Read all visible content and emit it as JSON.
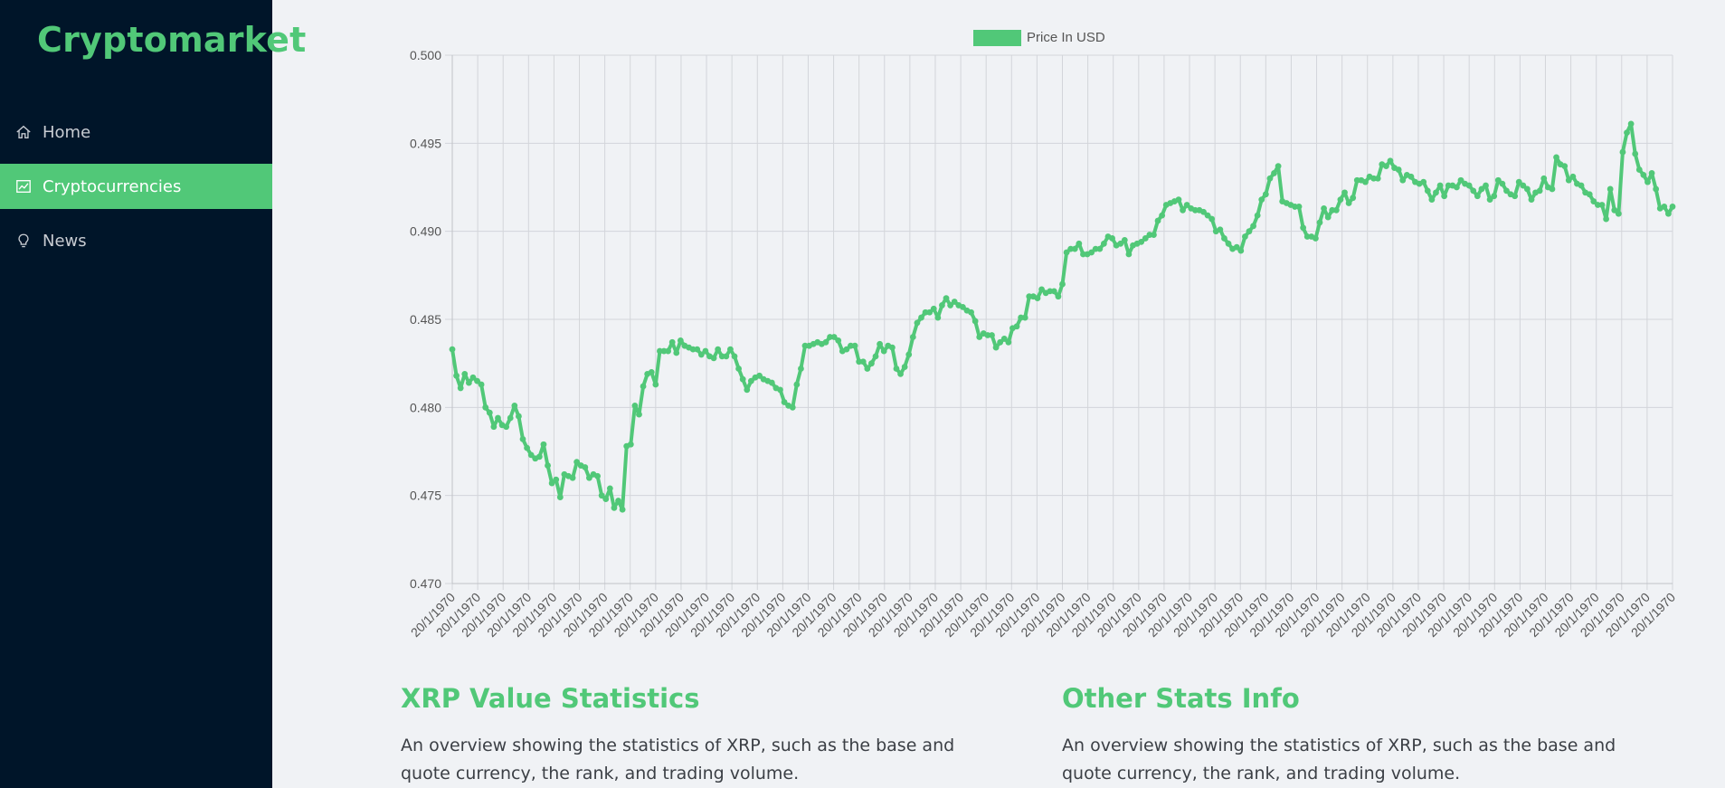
{
  "app": {
    "brand": "Cryptomarket"
  },
  "sidebar": {
    "items": [
      {
        "label": "Home",
        "icon": "home-icon",
        "active": false
      },
      {
        "label": "Cryptocurrencies",
        "icon": "line-chart-icon",
        "active": true
      },
      {
        "label": "News",
        "icon": "bulb-icon",
        "active": false
      }
    ]
  },
  "colors": {
    "sidebar": "#001529",
    "accent": "#51c878",
    "background": "#f0f2f5"
  },
  "chart_data": {
    "type": "line",
    "legend": "Price In USD",
    "legend_position": "top-center",
    "ylim": [
      0.47,
      0.5
    ],
    "yticks": [
      "0.470",
      "0.475",
      "0.480",
      "0.485",
      "0.490",
      "0.495",
      "0.500"
    ],
    "x_tick_label": "20/1/1970",
    "x_tick_count": 49,
    "grid": true,
    "values": [
      0.4833,
      0.4818,
      0.4811,
      0.4819,
      0.4814,
      0.4817,
      0.4815,
      0.4813,
      0.48,
      0.4797,
      0.4789,
      0.4794,
      0.479,
      0.4789,
      0.4794,
      0.4801,
      0.4795,
      0.4782,
      0.4777,
      0.4773,
      0.4771,
      0.4772,
      0.4779,
      0.4767,
      0.4757,
      0.4759,
      0.4749,
      0.4762,
      0.4761,
      0.476,
      0.4769,
      0.4767,
      0.4766,
      0.476,
      0.4762,
      0.4761,
      0.475,
      0.4748,
      0.4754,
      0.4743,
      0.4747,
      0.4742,
      0.4778,
      0.4779,
      0.4801,
      0.4796,
      0.4812,
      0.4819,
      0.482,
      0.4813,
      0.4832,
      0.4832,
      0.4832,
      0.4837,
      0.4831,
      0.4838,
      0.4835,
      0.4834,
      0.4833,
      0.4833,
      0.483,
      0.4832,
      0.4829,
      0.4828,
      0.4833,
      0.4829,
      0.4829,
      0.4833,
      0.4829,
      0.4822,
      0.4816,
      0.481,
      0.4815,
      0.4817,
      0.4818,
      0.4816,
      0.4815,
      0.4814,
      0.4811,
      0.481,
      0.4803,
      0.4801,
      0.48,
      0.4813,
      0.4822,
      0.4835,
      0.4835,
      0.4836,
      0.4837,
      0.4836,
      0.4837,
      0.484,
      0.484,
      0.4838,
      0.4832,
      0.4833,
      0.4835,
      0.4835,
      0.4826,
      0.4826,
      0.4822,
      0.4825,
      0.4829,
      0.4836,
      0.4832,
      0.4835,
      0.4834,
      0.4822,
      0.4819,
      0.4823,
      0.483,
      0.484,
      0.4848,
      0.4851,
      0.4854,
      0.4854,
      0.4856,
      0.4851,
      0.4858,
      0.4862,
      0.4858,
      0.486,
      0.4858,
      0.4857,
      0.4855,
      0.4854,
      0.4849,
      0.484,
      0.4842,
      0.4841,
      0.4841,
      0.4834,
      0.4837,
      0.4839,
      0.4837,
      0.4845,
      0.4846,
      0.4851,
      0.4851,
      0.4863,
      0.4863,
      0.4862,
      0.4867,
      0.4865,
      0.4866,
      0.4866,
      0.4863,
      0.487,
      0.4888,
      0.489,
      0.489,
      0.4893,
      0.4887,
      0.4887,
      0.4888,
      0.489,
      0.489,
      0.4893,
      0.4897,
      0.4896,
      0.4892,
      0.4893,
      0.4895,
      0.4887,
      0.4892,
      0.4893,
      0.4894,
      0.4896,
      0.4898,
      0.4898,
      0.4906,
      0.4909,
      0.4915,
      0.4916,
      0.4917,
      0.4918,
      0.4912,
      0.4915,
      0.4913,
      0.4912,
      0.4912,
      0.4911,
      0.4909,
      0.4907,
      0.49,
      0.4901,
      0.4896,
      0.4893,
      0.489,
      0.4891,
      0.4889,
      0.4897,
      0.49,
      0.4903,
      0.4909,
      0.4918,
      0.4921,
      0.493,
      0.4933,
      0.4937,
      0.4917,
      0.4916,
      0.4915,
      0.4914,
      0.4914,
      0.4902,
      0.4897,
      0.4897,
      0.4896,
      0.4905,
      0.4913,
      0.4908,
      0.4912,
      0.4912,
      0.4918,
      0.4922,
      0.4916,
      0.4919,
      0.4929,
      0.4929,
      0.4928,
      0.4931,
      0.493,
      0.493,
      0.4938,
      0.4937,
      0.494,
      0.4936,
      0.4935,
      0.4929,
      0.4932,
      0.4931,
      0.4928,
      0.4927,
      0.4928,
      0.4923,
      0.4918,
      0.4922,
      0.4926,
      0.492,
      0.4926,
      0.4926,
      0.4925,
      0.4929,
      0.4927,
      0.4926,
      0.4923,
      0.492,
      0.4924,
      0.4926,
      0.4918,
      0.492,
      0.4929,
      0.4927,
      0.4923,
      0.4921,
      0.492,
      0.4928,
      0.4926,
      0.4924,
      0.4918,
      0.4922,
      0.4923,
      0.493,
      0.4925,
      0.4924,
      0.4942,
      0.4938,
      0.4937,
      0.4929,
      0.4931,
      0.4927,
      0.4926,
      0.4922,
      0.4921,
      0.4917,
      0.4915,
      0.4915,
      0.4907,
      0.4924,
      0.4912,
      0.491,
      0.4945,
      0.4956,
      0.4961,
      0.4944,
      0.4935,
      0.4932,
      0.4928,
      0.4933,
      0.4924,
      0.4913,
      0.4914,
      0.491,
      0.4914
    ]
  },
  "stats": {
    "value_title": "XRP Value Statistics",
    "value_desc": "An overview showing the statistics of XRP, such as the base and quote currency, the rank, and trading volume.",
    "other_title": "Other Stats Info",
    "other_desc": "An overview showing the statistics of XRP, such as the base and quote currency, the rank, and trading volume."
  }
}
